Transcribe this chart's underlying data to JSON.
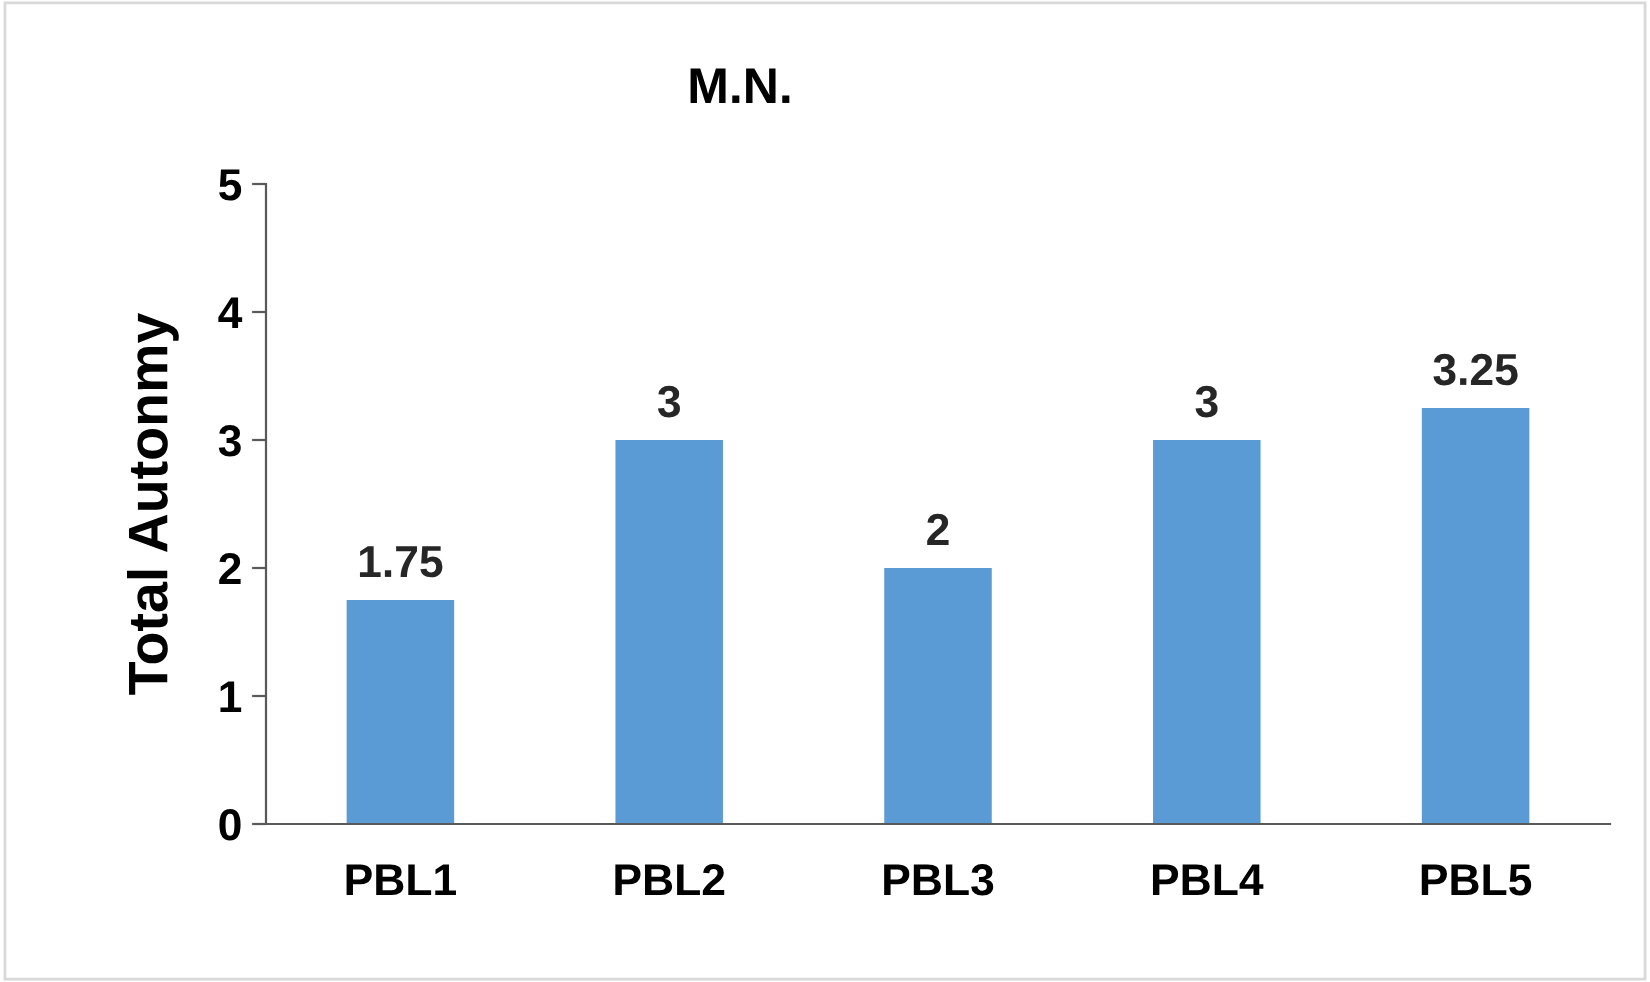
{
  "chart_data": {
    "type": "bar",
    "title": "M.N.",
    "ylabel": "Total Autonmy",
    "categories": [
      "PBL1",
      "PBL2",
      "PBL3",
      "PBL4",
      "PBL5"
    ],
    "values": [
      1.75,
      3,
      2,
      3,
      3.25
    ],
    "color": "#5b9bd5",
    "ylim": [
      0,
      5
    ],
    "yticks": [
      0,
      1,
      2,
      3,
      4,
      5
    ],
    "grid": false,
    "data_labels": true
  }
}
